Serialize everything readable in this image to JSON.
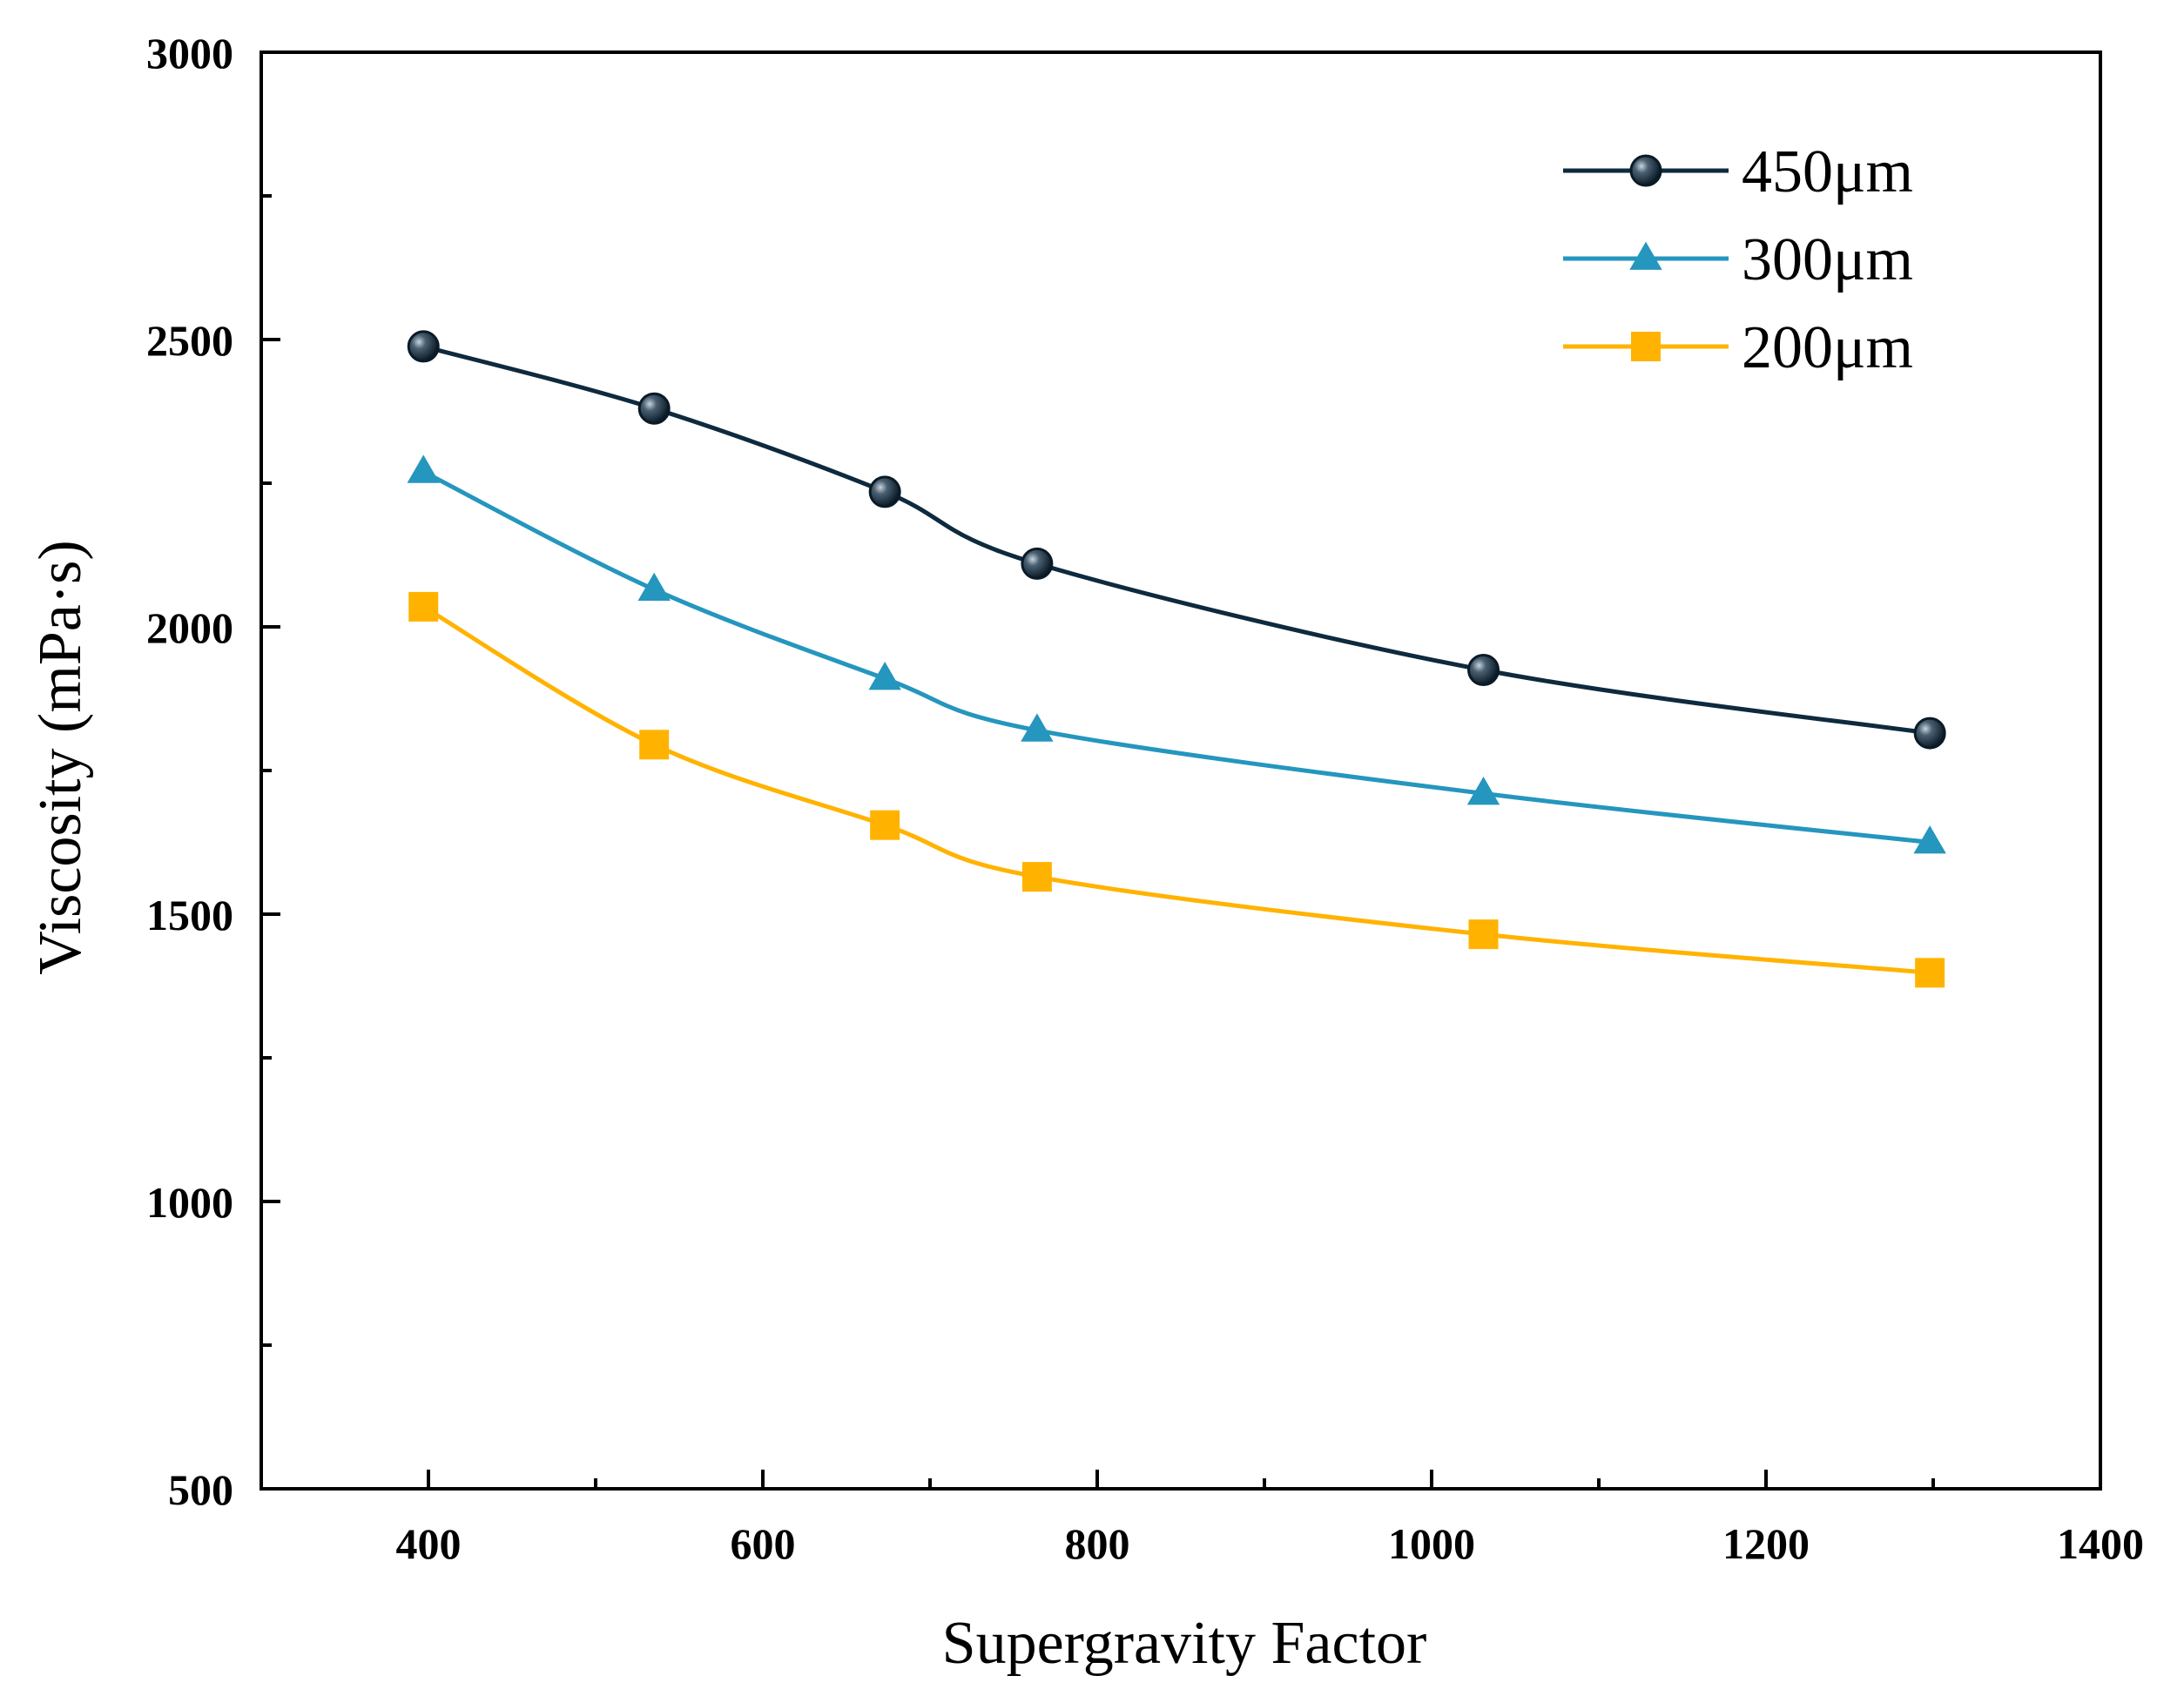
{
  "chart_data": {
    "type": "line",
    "title": "",
    "xlabel": "Supergravity Factor",
    "ylabel": "Viscosity (mPa·s)",
    "xlim": [
      300,
      1400
    ],
    "ylim": [
      500,
      3000
    ],
    "xticks": [
      400,
      600,
      800,
      1000,
      1200,
      1400
    ],
    "yticks": [
      500,
      1000,
      1500,
      2000,
      2500,
      3000
    ],
    "xtick_labels": [
      "400",
      "600",
      "800",
      "1000",
      "1200",
      "1400"
    ],
    "ytick_labels": [
      "500",
      "1000",
      "1500",
      "2000",
      "2500",
      "3000"
    ],
    "grid": false,
    "legend_position": "top-right",
    "x": [
      397,
      535,
      673,
      764,
      1031,
      1298
    ],
    "series": [
      {
        "name": "450μm",
        "marker": "circle",
        "color": "#0e2a3e",
        "values": [
          2488,
          2380,
          2235,
          2110,
          1925,
          1815
        ]
      },
      {
        "name": "300μm",
        "marker": "triangle",
        "color": "#2596be",
        "values": [
          2270,
          2065,
          1910,
          1820,
          1710,
          1625
        ]
      },
      {
        "name": "200μm",
        "marker": "square",
        "color": "#ffb300",
        "values": [
          2035,
          1795,
          1655,
          1565,
          1465,
          1398
        ]
      }
    ]
  }
}
